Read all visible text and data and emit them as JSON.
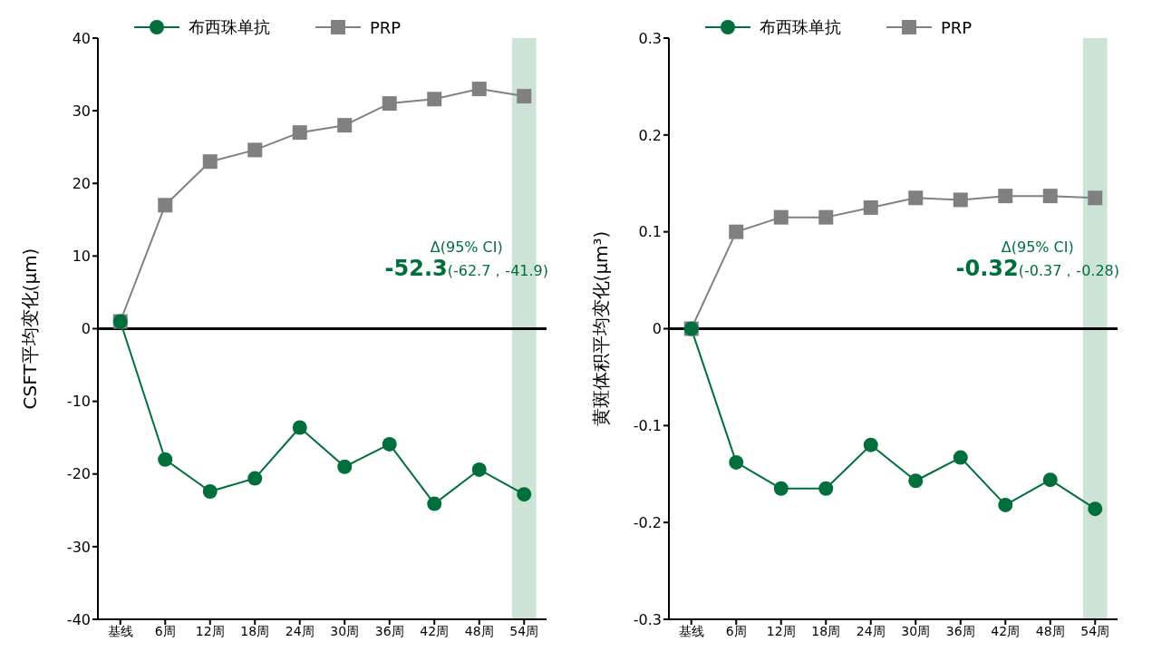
{
  "chart_data": [
    {
      "type": "line",
      "ylabel": "CSFT平均变化(μm)",
      "categories": [
        "基线",
        "6周",
        "12周",
        "18周",
        "24周",
        "30周",
        "36周",
        "42周",
        "48周",
        "54周"
      ],
      "series": [
        {
          "name": "布西珠单抗",
          "color": "#006f3c",
          "marker": "circle",
          "values": [
            1,
            -18,
            -22.4,
            -20.6,
            -13.6,
            -19,
            -15.9,
            -24.1,
            -19.4,
            -22.8
          ]
        },
        {
          "name": "PRP",
          "color": "#808080",
          "marker": "square",
          "values": [
            1,
            17,
            23,
            24.6,
            27,
            28,
            31,
            31.6,
            33,
            32
          ]
        }
      ],
      "ylim": [
        -40,
        40
      ],
      "yticks": [
        -40,
        -30,
        -20,
        -10,
        0,
        10,
        20,
        30,
        40
      ],
      "grid": false,
      "legend": "top",
      "ref_lines": [
        {
          "axis": "y",
          "value": 0,
          "color": "#000000"
        }
      ],
      "bands": [
        {
          "axis": "x",
          "from": "54周",
          "to": "54周",
          "color": "#cce3d6"
        }
      ],
      "annotations": [
        "Δ(95% CI)",
        "-52.3",
        "(-62.7，-41.9)"
      ]
    },
    {
      "type": "line",
      "ylabel": "黄斑体积平均变化(μm³)",
      "categories": [
        "基线",
        "6周",
        "12周",
        "18周",
        "24周",
        "30周",
        "36周",
        "42周",
        "48周",
        "54周"
      ],
      "series": [
        {
          "name": "布西珠单抗",
          "color": "#006f3c",
          "marker": "circle",
          "values": [
            0,
            -0.138,
            -0.165,
            -0.165,
            -0.12,
            -0.157,
            -0.133,
            -0.182,
            -0.156,
            -0.186
          ]
        },
        {
          "name": "PRP",
          "color": "#808080",
          "marker": "square",
          "values": [
            0,
            0.1,
            0.115,
            0.115,
            0.125,
            0.135,
            0.133,
            0.137,
            0.137,
            0.135
          ]
        }
      ],
      "ylim": [
        -0.3,
        0.3
      ],
      "yticks": [
        -0.3,
        -0.2,
        -0.1,
        0,
        0.1,
        0.2,
        0.3
      ],
      "grid": false,
      "legend": "top",
      "ref_lines": [
        {
          "axis": "y",
          "value": 0,
          "color": "#000000"
        }
      ],
      "bands": [
        {
          "axis": "x",
          "from": "54周",
          "to": "54周",
          "color": "#cce3d6"
        }
      ],
      "annotations": [
        "Δ(95% CI)",
        "-0.32",
        "(-0.37，-0.28)"
      ]
    }
  ]
}
